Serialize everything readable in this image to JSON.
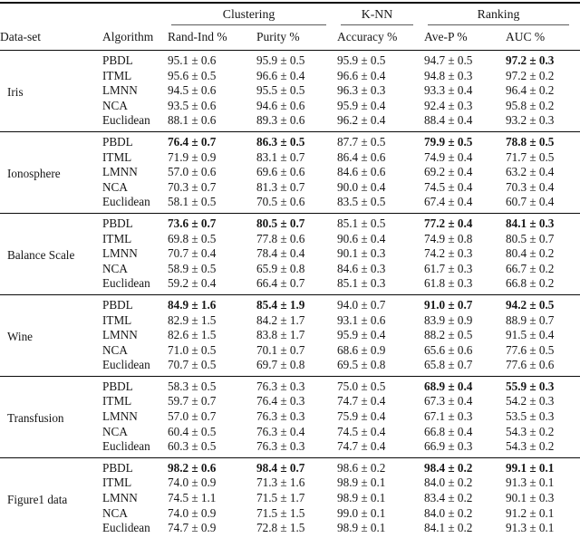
{
  "table": {
    "group_headers": [
      {
        "label": "Clustering"
      },
      {
        "label": "K-NN"
      },
      {
        "label": "Ranking"
      }
    ],
    "columns": [
      "Data-set",
      "Algorithm",
      "Rand-Ind %",
      "Purity %",
      "Accuracy %",
      "Ave-P %",
      "AUC %"
    ],
    "sections": [
      {
        "dataset": "Iris",
        "rows": [
          {
            "algorithm": "PBDL",
            "values": [
              "95.1 ± 0.6",
              "95.9 ± 0.5",
              "95.9 ± 0.5",
              "94.7 ± 0.5",
              "97.2 ± 0.3"
            ],
            "bold": [
              4
            ]
          },
          {
            "algorithm": "ITML",
            "values": [
              "95.6 ± 0.5",
              "96.6 ± 0.4",
              "96.6 ± 0.4",
              "94.8 ± 0.3",
              "97.2 ± 0.2"
            ],
            "bold": []
          },
          {
            "algorithm": "LMNN",
            "values": [
              "94.5 ± 0.6",
              "95.5 ± 0.5",
              "96.3 ± 0.3",
              "93.3 ± 0.4",
              "96.4 ± 0.2"
            ],
            "bold": []
          },
          {
            "algorithm": "NCA",
            "values": [
              "93.5 ± 0.6",
              "94.6 ± 0.6",
              "95.9 ± 0.4",
              "92.4 ± 0.3",
              "95.8 ± 0.2"
            ],
            "bold": []
          },
          {
            "algorithm": "Euclidean",
            "values": [
              "88.1 ± 0.6",
              "89.3 ± 0.6",
              "96.2 ± 0.4",
              "88.4 ± 0.4",
              "93.2 ± 0.3"
            ],
            "bold": []
          }
        ]
      },
      {
        "dataset": "Ionosphere",
        "rows": [
          {
            "algorithm": "PBDL",
            "values": [
              "76.4 ± 0.7",
              "86.3 ± 0.5",
              "87.7 ± 0.5",
              "79.9 ± 0.5",
              "78.8 ± 0.5"
            ],
            "bold": [
              0,
              1,
              3,
              4
            ]
          },
          {
            "algorithm": "ITML",
            "values": [
              "71.9 ± 0.9",
              "83.1 ± 0.7",
              "86.4 ± 0.6",
              "74.9 ± 0.4",
              "71.7 ± 0.5"
            ],
            "bold": []
          },
          {
            "algorithm": "LMNN",
            "values": [
              "57.0 ± 0.6",
              "69.6 ± 0.6",
              "84.6 ± 0.6",
              "69.2 ± 0.4",
              "63.2 ± 0.4"
            ],
            "bold": []
          },
          {
            "algorithm": "NCA",
            "values": [
              "70.3 ± 0.7",
              "81.3 ± 0.7",
              "90.0 ± 0.4",
              "74.5 ± 0.4",
              "70.3 ± 0.4"
            ],
            "bold": []
          },
          {
            "algorithm": "Euclidean",
            "values": [
              "58.1 ± 0.5",
              "70.5 ± 0.6",
              "83.5 ± 0.5",
              "67.4 ± 0.4",
              "60.7 ± 0.4"
            ],
            "bold": []
          }
        ]
      },
      {
        "dataset": "Balance Scale",
        "rows": [
          {
            "algorithm": "PBDL",
            "values": [
              "73.6 ± 0.7",
              "80.5 ± 0.7",
              "85.1 ± 0.5",
              "77.2 ± 0.4",
              "84.1 ± 0.3"
            ],
            "bold": [
              0,
              1,
              3,
              4
            ]
          },
          {
            "algorithm": "ITML",
            "values": [
              "69.8 ± 0.5",
              "77.8 ± 0.6",
              "90.6 ± 0.4",
              "74.9 ± 0.8",
              "80.5 ± 0.7"
            ],
            "bold": []
          },
          {
            "algorithm": "LMNN",
            "values": [
              "70.7 ± 0.4",
              "78.4 ± 0.4",
              "90.1 ± 0.3",
              "74.2 ± 0.3",
              "80.4 ± 0.2"
            ],
            "bold": []
          },
          {
            "algorithm": "NCA",
            "values": [
              "58.9 ± 0.5",
              "65.9 ± 0.8",
              "84.6 ± 0.3",
              "61.7 ± 0.3",
              "66.7 ± 0.2"
            ],
            "bold": []
          },
          {
            "algorithm": "Euclidean",
            "values": [
              "59.2 ± 0.4",
              "66.4 ± 0.7",
              "85.1 ± 0.3",
              "61.8 ± 0.3",
              "66.8 ± 0.2"
            ],
            "bold": []
          }
        ]
      },
      {
        "dataset": "Wine",
        "rows": [
          {
            "algorithm": "PBDL",
            "values": [
              "84.9 ± 1.6",
              "85.4 ± 1.9",
              "94.0 ± 0.7",
              "91.0 ± 0.7",
              "94.2 ± 0.5"
            ],
            "bold": [
              0,
              1,
              3,
              4
            ]
          },
          {
            "algorithm": "ITML",
            "values": [
              "82.9 ± 1.5",
              "84.2 ± 1.7",
              "93.1 ± 0.6",
              "83.9 ± 0.9",
              "88.9 ± 0.7"
            ],
            "bold": []
          },
          {
            "algorithm": "LMNN",
            "values": [
              "82.6 ± 1.5",
              "83.8 ± 1.7",
              "95.9 ± 0.4",
              "88.2 ± 0.5",
              "91.5 ± 0.4"
            ],
            "bold": []
          },
          {
            "algorithm": "NCA",
            "values": [
              "71.0 ± 0.5",
              "70.1 ± 0.7",
              "68.6 ± 0.9",
              "65.6 ± 0.6",
              "77.6 ± 0.5"
            ],
            "bold": []
          },
          {
            "algorithm": "Euclidean",
            "values": [
              "70.7 ± 0.5",
              "69.7 ± 0.8",
              "69.5 ± 0.8",
              "65.8 ± 0.7",
              "77.6 ± 0.6"
            ],
            "bold": []
          }
        ]
      },
      {
        "dataset": "Transfusion",
        "rows": [
          {
            "algorithm": "PBDL",
            "values": [
              "58.3 ± 0.5",
              "76.3 ± 0.3",
              "75.0 ± 0.5",
              "68.9 ± 0.4",
              "55.9 ± 0.3"
            ],
            "bold": [
              3,
              4
            ]
          },
          {
            "algorithm": "ITML",
            "values": [
              "59.7 ± 0.7",
              "76.4 ± 0.3",
              "74.7 ± 0.4",
              "67.3 ± 0.4",
              "54.2 ± 0.3"
            ],
            "bold": []
          },
          {
            "algorithm": "LMNN",
            "values": [
              "57.0 ± 0.7",
              "76.3 ± 0.3",
              "75.9 ± 0.4",
              "67.1 ± 0.3",
              "53.5 ± 0.3"
            ],
            "bold": []
          },
          {
            "algorithm": "NCA",
            "values": [
              "60.4 ± 0.5",
              "76.3 ± 0.4",
              "74.5 ± 0.4",
              "66.8 ± 0.4",
              "54.3 ± 0.2"
            ],
            "bold": []
          },
          {
            "algorithm": "Euclidean",
            "values": [
              "60.3 ± 0.5",
              "76.3 ± 0.3",
              "74.7 ± 0.4",
              "66.9 ± 0.3",
              "54.3 ± 0.2"
            ],
            "bold": []
          }
        ]
      },
      {
        "dataset": "Figure1 data",
        "rows": [
          {
            "algorithm": "PBDL",
            "values": [
              "98.2 ± 0.6",
              "98.4 ± 0.7",
              "98.6 ± 0.2",
              "98.4 ± 0.2",
              "99.1 ± 0.1"
            ],
            "bold": [
              0,
              1,
              3,
              4
            ]
          },
          {
            "algorithm": "ITML",
            "values": [
              "74.0 ± 0.9",
              "71.3 ± 1.6",
              "98.9 ± 0.1",
              "84.0 ± 0.2",
              "91.3 ± 0.1"
            ],
            "bold": []
          },
          {
            "algorithm": "LMNN",
            "values": [
              "74.5 ± 1.1",
              "71.5 ± 1.7",
              "98.9 ± 0.1",
              "83.4 ± 0.2",
              "90.1 ± 0.3"
            ],
            "bold": []
          },
          {
            "algorithm": "NCA",
            "values": [
              "74.0 ± 0.9",
              "71.5 ± 1.5",
              "99.0 ± 0.1",
              "84.0 ± 0.2",
              "91.2 ± 0.1"
            ],
            "bold": []
          },
          {
            "algorithm": "Euclidean",
            "values": [
              "74.7 ± 0.9",
              "72.8 ± 1.5",
              "98.9 ± 0.1",
              "84.1 ± 0.2",
              "91.3 ± 0.1"
            ],
            "bold": []
          }
        ]
      }
    ]
  }
}
